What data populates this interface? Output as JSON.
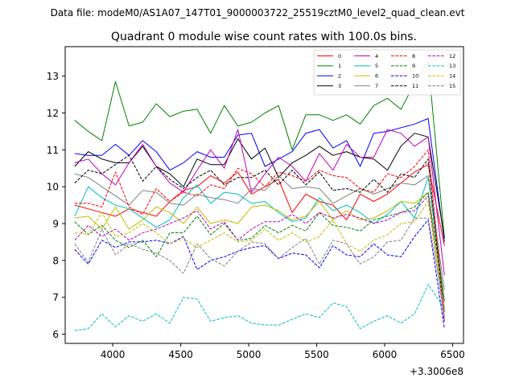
{
  "header": {
    "datafile": "Data file: modeM0/AS1A07_147T01_9000003722_25519cztM0_level2_quad_clean.evt"
  },
  "chart_data": {
    "type": "line",
    "title": "Quadrant 0 module wise count rates with 100.0s bins.",
    "xlabel": "",
    "ylabel": "",
    "x_offset_label": "+3.3006e8",
    "xlim": [
      3650,
      6580
    ],
    "ylim": [
      5.75,
      13.8
    ],
    "xticks": [
      4000,
      4500,
      5000,
      5500,
      6000,
      6500
    ],
    "yticks": [
      6,
      7,
      8,
      9,
      10,
      11,
      12,
      13
    ],
    "legend_position": "upper-right",
    "x": [
      3720,
      3820,
      3920,
      4020,
      4120,
      4220,
      4320,
      4420,
      4520,
      4620,
      4720,
      4820,
      4920,
      5020,
      5120,
      5220,
      5320,
      5420,
      5520,
      5620,
      5720,
      5820,
      5920,
      6020,
      6120,
      6220,
      6320,
      6440
    ],
    "series": [
      {
        "name": "0",
        "color": "#ff0000",
        "dash": "solid",
        "values": [
          9.5,
          9.4,
          9.3,
          9.2,
          9.4,
          9.3,
          9.2,
          9.6,
          9.9,
          10.0,
          10.3,
          10.1,
          10.4,
          9.8,
          10.0,
          10.2,
          9.3,
          9.8,
          9.6,
          9.5,
          9.1,
          9.8,
          9.6,
          9.8,
          10.1,
          10.4,
          10.6,
          8.4
        ]
      },
      {
        "name": "1",
        "color": "#008000",
        "dash": "solid",
        "values": [
          11.8,
          11.5,
          11.25,
          12.85,
          11.65,
          11.75,
          12.25,
          11.9,
          12.05,
          12.1,
          11.45,
          12.2,
          11.65,
          11.75,
          12.0,
          12.2,
          11.0,
          11.95,
          11.95,
          11.8,
          11.95,
          11.7,
          12.2,
          12.4,
          12.1,
          12.8,
          13.4,
          8.6
        ]
      },
      {
        "name": "2",
        "color": "#0000ff",
        "dash": "solid",
        "values": [
          10.9,
          10.85,
          10.85,
          11.15,
          10.85,
          11.25,
          10.95,
          10.45,
          10.65,
          10.95,
          10.8,
          10.8,
          11.4,
          11.45,
          10.55,
          10.75,
          10.95,
          11.45,
          11.55,
          11.05,
          11.25,
          10.55,
          11.45,
          11.5,
          11.6,
          11.7,
          11.85,
          8.5
        ]
      },
      {
        "name": "3",
        "color": "#000000",
        "dash": "solid",
        "values": [
          10.55,
          10.95,
          10.75,
          10.65,
          10.65,
          11.1,
          10.55,
          10.35,
          10.0,
          10.75,
          10.6,
          10.6,
          11.3,
          10.75,
          11.05,
          10.25,
          10.65,
          10.85,
          11.1,
          10.85,
          10.95,
          10.8,
          10.75,
          10.45,
          11.1,
          11.45,
          11.35,
          8.6
        ]
      },
      {
        "name": "4",
        "color": "#bf00bf",
        "dash": "solid",
        "values": [
          10.65,
          10.75,
          10.35,
          10.05,
          10.65,
          11.15,
          10.55,
          10.1,
          9.85,
          10.45,
          11.0,
          10.5,
          11.55,
          9.85,
          10.35,
          10.8,
          10.55,
          10.15,
          10.9,
          10.45,
          11.15,
          10.8,
          10.8,
          11.55,
          11.45,
          11.1,
          11.35,
          7.6
        ]
      },
      {
        "name": "5",
        "color": "#00bfbf",
        "dash": "solid",
        "values": [
          9.2,
          10.0,
          9.7,
          9.5,
          9.4,
          9.15,
          8.9,
          9.1,
          9.7,
          10.05,
          9.55,
          9.85,
          9.8,
          9.55,
          9.6,
          9.3,
          9.05,
          9.15,
          9.7,
          9.35,
          9.5,
          9.3,
          9.0,
          9.25,
          9.6,
          9.15,
          10.25,
          6.9
        ]
      },
      {
        "name": "6",
        "color": "#bfbf00",
        "dash": "solid",
        "values": [
          9.15,
          9.2,
          8.85,
          9.45,
          8.85,
          9.1,
          9.45,
          9.3,
          9.0,
          9.45,
          9.0,
          9.1,
          9.0,
          9.45,
          9.5,
          9.35,
          9.1,
          9.2,
          9.6,
          9.1,
          9.35,
          9.1,
          9.15,
          9.35,
          9.6,
          9.55,
          9.85,
          6.7
        ]
      },
      {
        "name": "7",
        "color": "#808080",
        "dash": "solid",
        "values": [
          10.35,
          10.25,
          10.0,
          9.75,
          9.5,
          9.9,
          9.85,
          9.55,
          9.5,
          9.8,
          9.7,
          9.65,
          9.55,
          9.95,
          9.9,
          10.3,
          9.95,
          10.0,
          9.95,
          9.55,
          9.75,
          9.95,
          9.8,
          9.95,
          10.1,
          10.05,
          10.3,
          7.2
        ]
      },
      {
        "name": "8",
        "color": "#ff0000",
        "dash": "dashed",
        "values": [
          9.55,
          9.55,
          9.45,
          10.4,
          9.45,
          9.25,
          9.95,
          9.6,
          9.85,
          9.75,
          10.05,
          9.95,
          10.5,
          10.35,
          10.0,
          10.4,
          10.3,
          10.15,
          10.45,
          10.3,
          10.25,
          9.95,
          9.85,
          10.35,
          10.25,
          10.55,
          11.0,
          6.6
        ]
      },
      {
        "name": "9",
        "color": "#008000",
        "dash": "dashed",
        "values": [
          9.05,
          8.7,
          8.95,
          8.55,
          8.35,
          8.55,
          8.1,
          8.75,
          8.75,
          9.2,
          8.7,
          9.0,
          8.55,
          8.6,
          8.95,
          8.75,
          8.95,
          8.8,
          9.3,
          8.95,
          8.9,
          8.8,
          9.1,
          9.2,
          9.3,
          9.45,
          9.85,
          6.9
        ]
      },
      {
        "name": "10",
        "color": "#0000ff",
        "dash": "dashed",
        "values": [
          8.3,
          7.9,
          8.55,
          8.35,
          8.5,
          8.5,
          8.55,
          8.45,
          8.65,
          7.75,
          8.0,
          8.1,
          8.25,
          8.35,
          8.4,
          8.05,
          8.2,
          8.15,
          7.8,
          8.4,
          8.15,
          8.1,
          8.45,
          8.15,
          8.1,
          8.65,
          9.1,
          6.15
        ]
      },
      {
        "name": "11",
        "color": "#000000",
        "dash": "dashed",
        "values": [
          10.1,
          10.45,
          10.35,
          10.6,
          10.85,
          10.15,
          10.55,
          10.2,
          9.95,
          10.25,
          10.45,
          10.05,
          10.25,
          10.25,
          10.45,
          10.05,
          10.45,
          10.05,
          10.4,
          9.9,
          9.95,
          9.85,
          10.2,
          9.85,
          10.35,
          10.25,
          10.75,
          6.35
        ]
      },
      {
        "name": "12",
        "color": "#bf00bf",
        "dash": "dashed",
        "values": [
          8.55,
          8.95,
          8.65,
          8.85,
          8.55,
          8.75,
          8.85,
          9.0,
          9.15,
          9.35,
          8.85,
          9.05,
          8.55,
          8.85,
          9.05,
          9.05,
          9.25,
          9.0,
          9.3,
          9.15,
          9.25,
          9.15,
          9.0,
          9.1,
          9.3,
          9.35,
          9.75,
          6.35
        ]
      },
      {
        "name": "13",
        "color": "#00bfbf",
        "dash": "dashed",
        "values": [
          6.1,
          6.15,
          6.55,
          6.2,
          6.5,
          6.35,
          6.55,
          6.3,
          7.0,
          6.95,
          6.35,
          6.45,
          6.5,
          6.3,
          6.25,
          6.25,
          6.4,
          6.55,
          6.45,
          6.85,
          6.75,
          6.15,
          6.35,
          6.5,
          6.3,
          6.55,
          7.35,
          6.7
        ]
      },
      {
        "name": "14",
        "color": "#bfbf00",
        "dash": "dashed",
        "values": [
          8.75,
          8.7,
          9.3,
          8.65,
          8.75,
          9.0,
          8.75,
          8.45,
          8.6,
          8.35,
          8.55,
          8.75,
          8.5,
          8.55,
          8.85,
          8.55,
          8.75,
          8.5,
          8.65,
          9.1,
          8.45,
          8.25,
          8.55,
          8.7,
          9.0,
          9.05,
          9.6,
          6.5
        ]
      },
      {
        "name": "15",
        "color": "#808080",
        "dash": "dashed",
        "values": [
          8.45,
          7.95,
          8.85,
          8.15,
          8.45,
          8.3,
          8.2,
          8.0,
          7.65,
          8.45,
          8.05,
          7.85,
          8.25,
          8.5,
          8.45,
          8.05,
          8.35,
          8.6,
          7.9,
          8.55,
          8.45,
          7.9,
          8.1,
          8.5,
          8.55,
          9.15,
          9.15,
          6.6
        ]
      }
    ]
  }
}
